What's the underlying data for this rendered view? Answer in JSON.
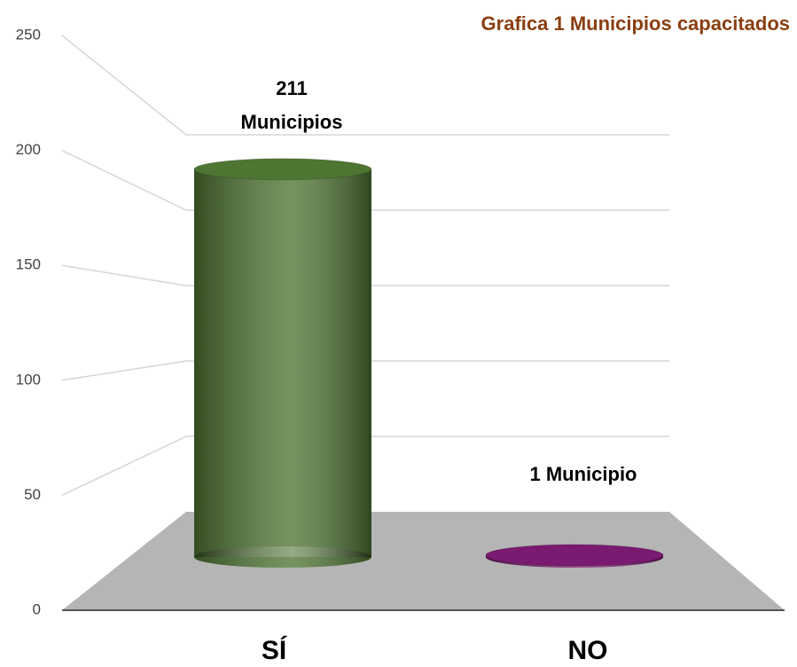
{
  "chart_data": {
    "type": "bar3d",
    "title": "Grafica 1 Municipios capacitados",
    "categories": [
      "SÍ",
      "NO"
    ],
    "values": [
      211,
      1
    ],
    "value_labels": [
      "211 Municipios",
      "1 Municipio"
    ],
    "colors": [
      "#4e7532",
      "#7a1a70"
    ],
    "ylim": [
      0,
      250
    ],
    "yticks": [
      0,
      50,
      100,
      150,
      200,
      250
    ],
    "grid": true
  }
}
